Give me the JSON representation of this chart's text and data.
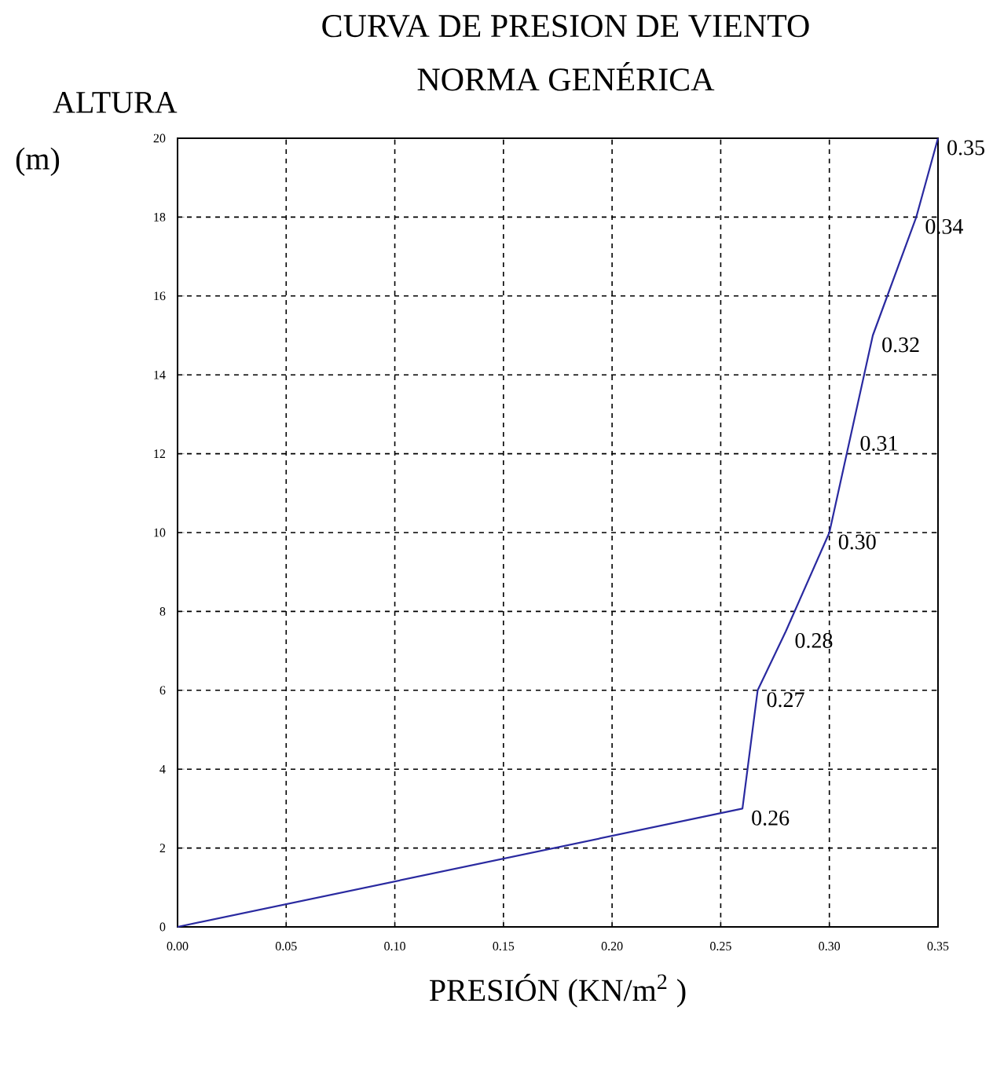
{
  "chart_data": {
    "type": "line",
    "title": "CURVA DE PRESION DE VIENTO",
    "subtitle": "NORMA GENÉRICA",
    "xlabel": "PRESIÓN (KN/m$^{2}$ )",
    "ylabel": "ALTURA (m)",
    "x": [
      0,
      0.26,
      0.267,
      0.28,
      0.3,
      0.31,
      0.32,
      0.34,
      0.35
    ],
    "values": [
      0,
      3,
      6,
      7.5,
      10,
      12.5,
      15,
      18,
      20
    ],
    "color": "#2a2aa0",
    "xlim": [
      0,
      0.35
    ],
    "ylim": [
      0,
      20
    ],
    "xticks": [
      {
        "value": 0,
        "label": "0.00"
      },
      {
        "value": 0.05,
        "label": "0.05"
      },
      {
        "value": 0.1,
        "label": "0.10"
      },
      {
        "value": 0.15,
        "label": "0.15"
      },
      {
        "value": 0.2,
        "label": "0.20"
      },
      {
        "value": 0.25,
        "label": "0.25"
      },
      {
        "value": 0.3,
        "label": "0.30"
      },
      {
        "value": 0.35,
        "label": "0.35"
      }
    ],
    "yticks": [
      0,
      2,
      4,
      6,
      8,
      10,
      12,
      14,
      16,
      18,
      20
    ],
    "grid": true,
    "annotations": [
      {
        "text": "0.26",
        "x": 0.26,
        "y": 3
      },
      {
        "text": "0.27",
        "x": 0.267,
        "y": 6
      },
      {
        "text": "0.28",
        "x": 0.28,
        "y": 7.5
      },
      {
        "text": "0.30",
        "x": 0.3,
        "y": 10
      },
      {
        "text": "0.31",
        "x": 0.31,
        "y": 12.5
      },
      {
        "text": "0.32",
        "x": 0.32,
        "y": 15
      },
      {
        "text": "0.34",
        "x": 0.34,
        "y": 18
      },
      {
        "text": "0.35",
        "x": 0.35,
        "y": 20
      }
    ]
  }
}
